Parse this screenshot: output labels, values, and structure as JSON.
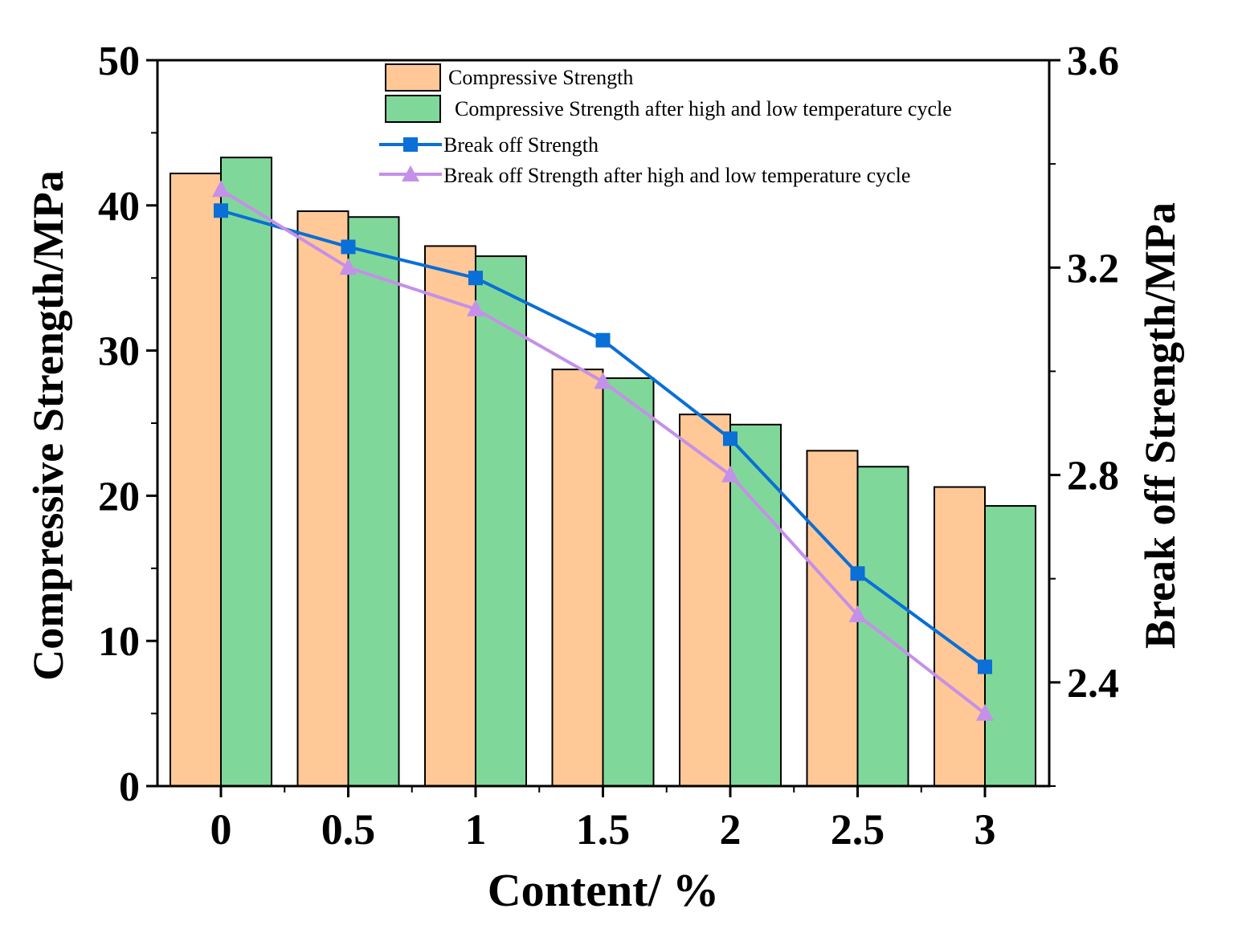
{
  "chart_data": {
    "type": "bar",
    "title": "",
    "xlabel": "Content/ %",
    "ylabel": "Compressive Strength/MPa",
    "y2label": "Break off Strength/MPa",
    "categories": [
      "0",
      "0.5",
      "1",
      "1.5",
      "2",
      "2.5",
      "3"
    ],
    "ylim": [
      0,
      50
    ],
    "yticks": [
      "0",
      "10",
      "20",
      "30",
      "40",
      "50"
    ],
    "y2lim": [
      2.2,
      3.6
    ],
    "y2ticks": [
      "2.4",
      "2.8",
      "3.2",
      "3.6"
    ],
    "legend_position": "top-right",
    "bar_series": [
      {
        "name": "Compressive Strength",
        "color": "#FFC896",
        "values": [
          42.2,
          39.6,
          37.2,
          28.7,
          25.6,
          23.1,
          20.6
        ]
      },
      {
        "name": "Compressive Strength after high and low temperature cycle",
        "color": "#7FD89A",
        "values": [
          43.3,
          39.2,
          36.5,
          28.1,
          24.9,
          22.0,
          19.3
        ]
      }
    ],
    "line_series": [
      {
        "name": "Break off Strength",
        "color": "#0A6FD6",
        "marker": "square",
        "axis": "right",
        "values": [
          3.31,
          3.24,
          3.18,
          3.06,
          2.87,
          2.61,
          2.43
        ]
      },
      {
        "name": "Break off Strength after high and low temperature cycle",
        "color": "#C590E8",
        "marker": "triangle",
        "axis": "right",
        "values": [
          3.35,
          3.2,
          3.12,
          2.98,
          2.8,
          2.53,
          2.34
        ]
      }
    ]
  }
}
